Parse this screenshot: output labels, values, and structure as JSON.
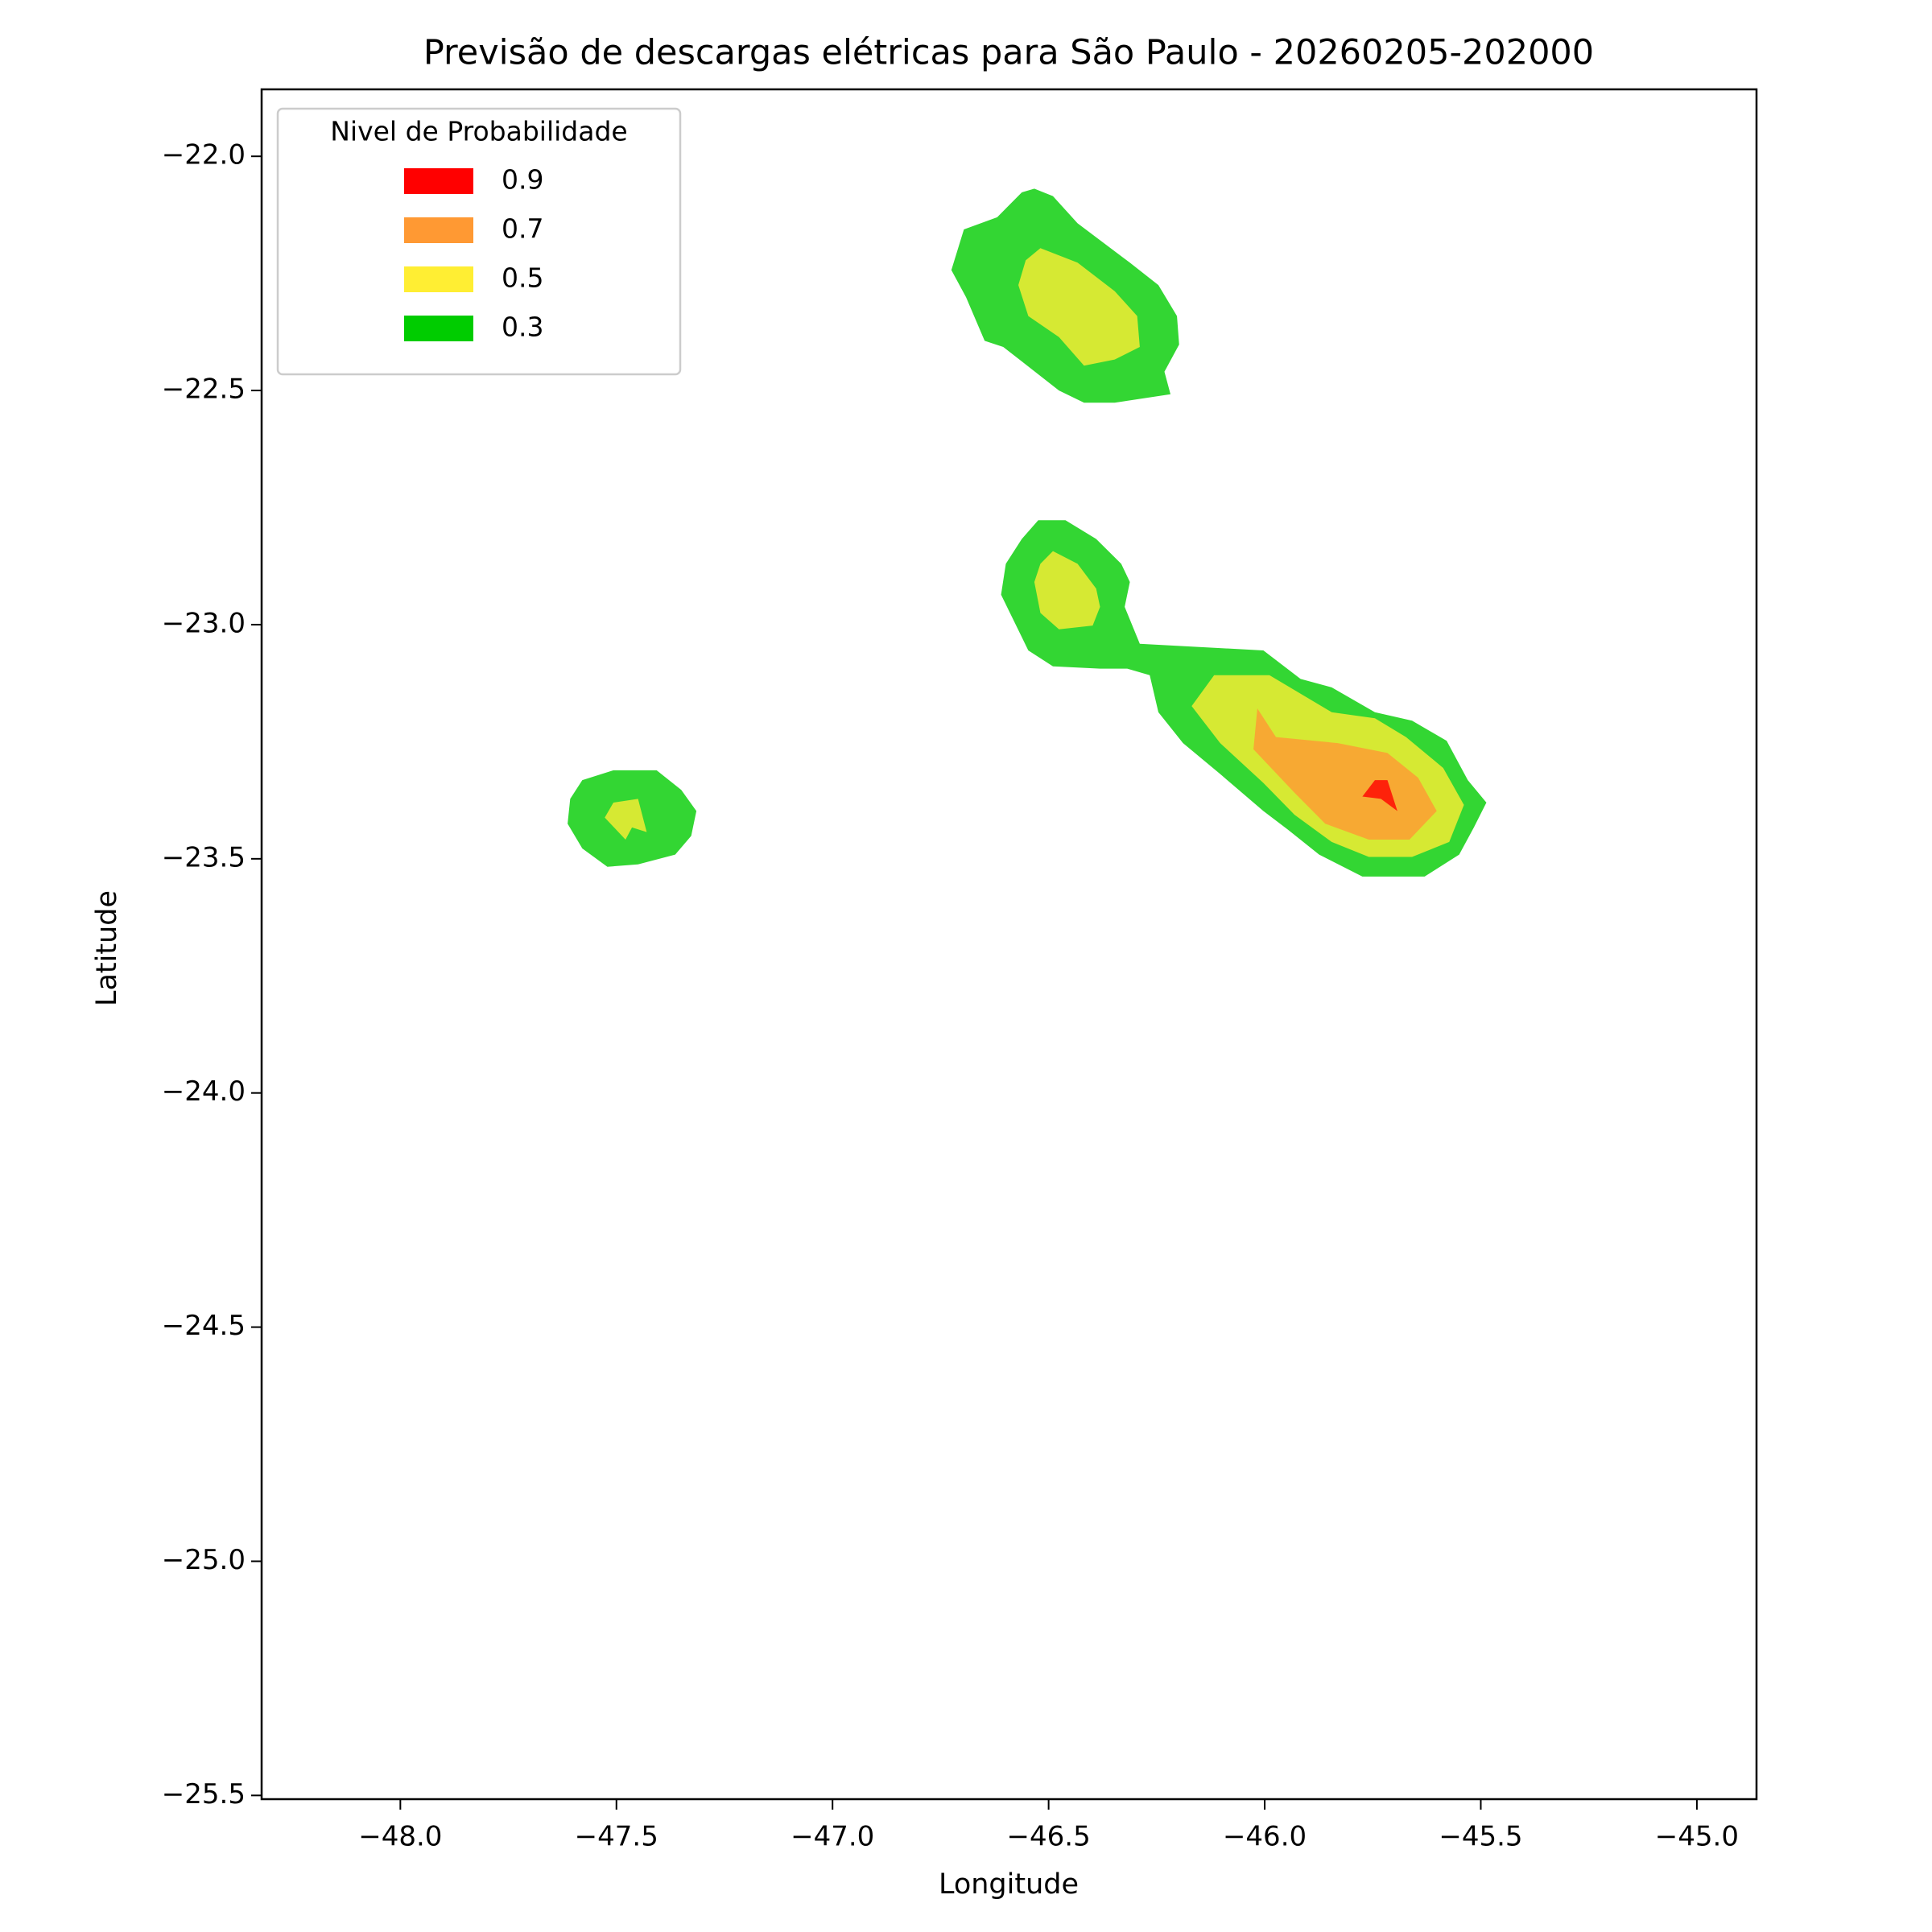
{
  "chart_data": {
    "type": "contour",
    "title": "Previsão de descargas elétricas para São Paulo - 20260205-202000",
    "xlabel": "Longitude",
    "ylabel": "Latitude",
    "xlim": [
      -48.321,
      -44.862
    ],
    "ylim": [
      -25.508,
      -21.857
    ],
    "xticks": [
      {
        "value": -48.0,
        "label": "−48.0"
      },
      {
        "value": -47.5,
        "label": "−47.5"
      },
      {
        "value": -47.0,
        "label": "−47.0"
      },
      {
        "value": -46.5,
        "label": "−46.5"
      },
      {
        "value": -46.0,
        "label": "−46.0"
      },
      {
        "value": -45.5,
        "label": "−45.5"
      },
      {
        "value": -45.0,
        "label": "−45.0"
      }
    ],
    "yticks": [
      {
        "value": -22.0,
        "label": "−22.0"
      },
      {
        "value": -22.5,
        "label": "−22.5"
      },
      {
        "value": -23.0,
        "label": "−23.0"
      },
      {
        "value": -23.5,
        "label": "−23.5"
      },
      {
        "value": -24.0,
        "label": "−24.0"
      },
      {
        "value": -24.5,
        "label": "−24.5"
      },
      {
        "value": -25.0,
        "label": "−25.0"
      },
      {
        "value": -25.5,
        "label": "−25.5"
      }
    ],
    "legend_title": "Nivel de Probabilidade",
    "legend_loc": "upper left",
    "fill_alpha": 0.8,
    "series": [
      {
        "name": "0.9",
        "color": "#ff0000",
        "polygons": [
          [
            [
              -45.774,
              -23.367
            ],
            [
              -45.745,
              -23.332
            ],
            [
              -45.716,
              -23.332
            ],
            [
              -45.693,
              -23.398
            ],
            [
              -45.731,
              -23.372
            ]
          ]
        ]
      },
      {
        "name": "0.7",
        "color": "#ff9933",
        "polygons": [
          [
            [
              -46.017,
              -23.179
            ],
            [
              -45.974,
              -23.24
            ],
            [
              -45.831,
              -23.253
            ],
            [
              -45.716,
              -23.274
            ],
            [
              -45.645,
              -23.327
            ],
            [
              -45.602,
              -23.398
            ],
            [
              -45.665,
              -23.459
            ],
            [
              -45.759,
              -23.459
            ],
            [
              -45.86,
              -23.425
            ],
            [
              -45.931,
              -23.359
            ],
            [
              -46.026,
              -23.266
            ]
          ]
        ]
      },
      {
        "name": "0.5",
        "color": "#ffee33",
        "polygons": [
          [
            [
              -46.519,
              -22.196
            ],
            [
              -46.433,
              -22.227
            ],
            [
              -46.347,
              -22.288
            ],
            [
              -46.295,
              -22.341
            ],
            [
              -46.289,
              -22.407
            ],
            [
              -46.347,
              -22.434
            ],
            [
              -46.418,
              -22.447
            ],
            [
              -46.476,
              -22.386
            ],
            [
              -46.547,
              -22.341
            ],
            [
              -46.57,
              -22.275
            ],
            [
              -46.553,
              -22.222
            ]
          ],
          [
            [
              -46.49,
              -22.843
            ],
            [
              -46.433,
              -22.87
            ],
            [
              -46.39,
              -22.923
            ],
            [
              -46.381,
              -22.962
            ],
            [
              -46.398,
              -23.002
            ],
            [
              -46.476,
              -23.01
            ],
            [
              -46.519,
              -22.975
            ],
            [
              -46.533,
              -22.909
            ],
            [
              -46.519,
              -22.87
            ]
          ],
          [
            [
              -46.117,
              -23.108
            ],
            [
              -45.989,
              -23.108
            ],
            [
              -45.845,
              -23.187
            ],
            [
              -45.745,
              -23.2
            ],
            [
              -45.673,
              -23.24
            ],
            [
              -45.587,
              -23.306
            ],
            [
              -45.539,
              -23.385
            ],
            [
              -45.573,
              -23.464
            ],
            [
              -45.659,
              -23.496
            ],
            [
              -45.759,
              -23.496
            ],
            [
              -45.845,
              -23.464
            ],
            [
              -45.931,
              -23.406
            ],
            [
              -46.003,
              -23.338
            ],
            [
              -46.103,
              -23.253
            ],
            [
              -46.169,
              -23.174
            ]
          ],
          [
            [
              -47.507,
              -23.38
            ],
            [
              -47.45,
              -23.372
            ],
            [
              -47.43,
              -23.443
            ],
            [
              -47.464,
              -23.433
            ],
            [
              -47.479,
              -23.459
            ],
            [
              -47.527,
              -23.412
            ]
          ]
        ]
      },
      {
        "name": "0.3",
        "color": "#00cc00",
        "polygons": [
          [
            [
              -46.533,
              -22.069
            ],
            [
              -46.49,
              -22.085
            ],
            [
              -46.433,
              -22.143
            ],
            [
              -46.312,
              -22.227
            ],
            [
              -46.246,
              -22.275
            ],
            [
              -46.203,
              -22.341
            ],
            [
              -46.198,
              -22.402
            ],
            [
              -46.232,
              -22.46
            ],
            [
              -46.218,
              -22.508
            ],
            [
              -46.347,
              -22.526
            ],
            [
              -46.418,
              -22.526
            ],
            [
              -46.476,
              -22.5
            ],
            [
              -46.605,
              -22.407
            ],
            [
              -46.648,
              -22.394
            ],
            [
              -46.691,
              -22.301
            ],
            [
              -46.725,
              -22.243
            ],
            [
              -46.696,
              -22.156
            ],
            [
              -46.619,
              -22.13
            ],
            [
              -46.562,
              -22.077
            ]
          ],
          [
            [
              -46.524,
              -22.777
            ],
            [
              -46.461,
              -22.777
            ],
            [
              -46.39,
              -22.817
            ],
            [
              -46.332,
              -22.87
            ],
            [
              -46.312,
              -22.909
            ],
            [
              -46.324,
              -22.962
            ],
            [
              -46.289,
              -23.041
            ],
            [
              -46.003,
              -23.055
            ],
            [
              -45.917,
              -23.116
            ],
            [
              -45.845,
              -23.134
            ],
            [
              -45.745,
              -23.187
            ],
            [
              -45.659,
              -23.205
            ],
            [
              -45.579,
              -23.248
            ],
            [
              -45.53,
              -23.332
            ],
            [
              -45.487,
              -23.38
            ],
            [
              -45.516,
              -23.433
            ],
            [
              -45.55,
              -23.491
            ],
            [
              -45.63,
              -23.538
            ],
            [
              -45.774,
              -23.538
            ],
            [
              -45.874,
              -23.491
            ],
            [
              -45.946,
              -23.438
            ],
            [
              -46.003,
              -23.398
            ],
            [
              -46.103,
              -23.319
            ],
            [
              -46.189,
              -23.253
            ],
            [
              -46.246,
              -23.187
            ],
            [
              -46.266,
              -23.108
            ],
            [
              -46.318,
              -23.094
            ],
            [
              -46.381,
              -23.094
            ],
            [
              -46.49,
              -23.089
            ],
            [
              -46.547,
              -23.055
            ],
            [
              -46.582,
              -22.989
            ],
            [
              -46.61,
              -22.936
            ],
            [
              -46.599,
              -22.87
            ],
            [
              -46.562,
              -22.817
            ]
          ],
          [
            [
              -47.579,
              -23.332
            ],
            [
              -47.507,
              -23.311
            ],
            [
              -47.407,
              -23.311
            ],
            [
              -47.35,
              -23.353
            ],
            [
              -47.315,
              -23.398
            ],
            [
              -47.327,
              -23.451
            ],
            [
              -47.364,
              -23.491
            ],
            [
              -47.45,
              -23.512
            ],
            [
              -47.521,
              -23.517
            ],
            [
              -47.579,
              -23.478
            ],
            [
              -47.613,
              -23.425
            ],
            [
              -47.607,
              -23.372
            ]
          ]
        ]
      }
    ]
  }
}
